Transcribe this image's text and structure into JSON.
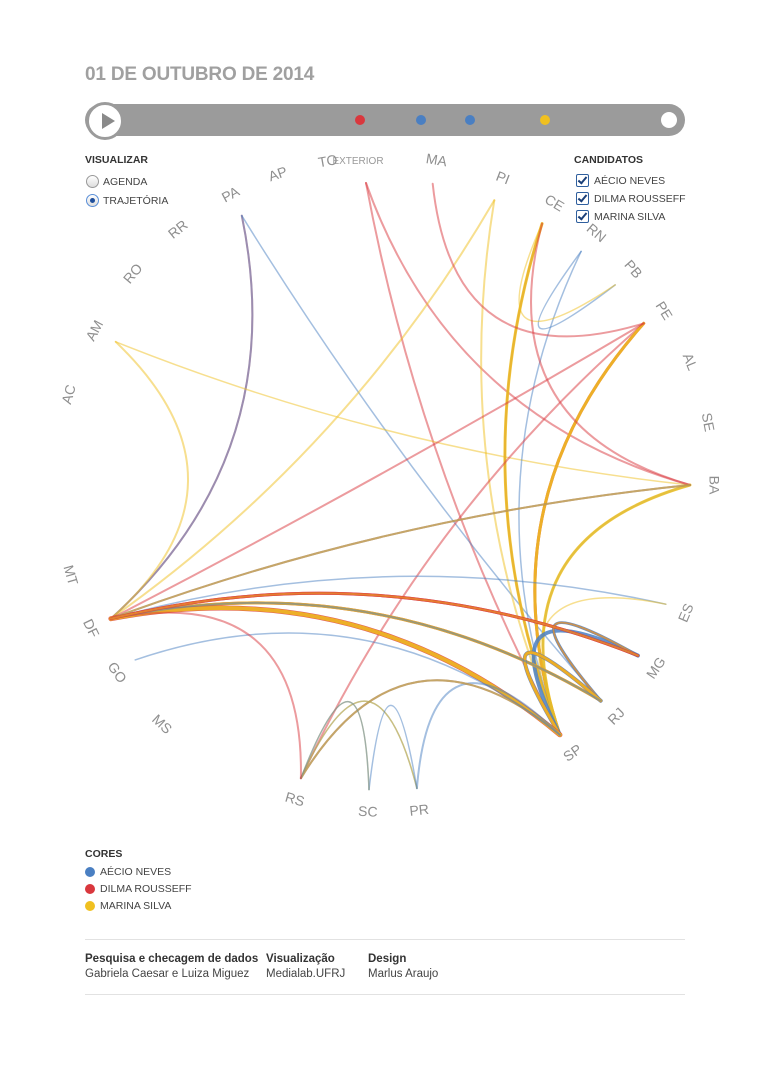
{
  "title": "01 DE OUTUBRO DE 2014",
  "timeline": {
    "dots": [
      {
        "color": "#d9373d"
      },
      {
        "color": "#4a7fc2"
      },
      {
        "color": "#4a7fc2"
      },
      {
        "color": "#f0c020"
      }
    ]
  },
  "visualize": {
    "heading": "VISUALIZAR",
    "options": [
      {
        "label": "AGENDA",
        "selected": false
      },
      {
        "label": "TRAJETÓRIA",
        "selected": true
      }
    ]
  },
  "candidates": {
    "heading": "CANDIDATOS",
    "items": [
      {
        "label": "AÉCIO NEVES",
        "checked": true
      },
      {
        "label": "DILMA ROUSSEFF",
        "checked": true
      },
      {
        "label": "MARINA SILVA",
        "checked": true
      }
    ]
  },
  "exterior_label": "EXTERIOR",
  "colors_legend": {
    "heading": "CORES",
    "items": [
      {
        "label": "AÉCIO NEVES",
        "color": "#4a7fc2"
      },
      {
        "label": "DILMA ROUSSEFF",
        "color": "#d9373d"
      },
      {
        "label": "MARINA SILVA",
        "color": "#f0c020"
      }
    ]
  },
  "states": [
    "MA",
    "PI",
    "CE",
    "RN",
    "PB",
    "PE",
    "AL",
    "SE",
    "BA",
    "ES",
    "MG",
    "RJ",
    "SP",
    "PR",
    "SC",
    "RS",
    "MS",
    "GO",
    "DF",
    "MT",
    "AC",
    "AM",
    "RO",
    "RR",
    "PA",
    "AP",
    "TO"
  ],
  "chord_colors": {
    "aecio": "#4a7fc2",
    "dilma": "#d9373d",
    "marina": "#f0c020"
  },
  "trajectories": [
    {
      "who": "dilma",
      "from": "EXTERIOR",
      "to": "SP",
      "weight": 2
    },
    {
      "who": "dilma",
      "from": "EXTERIOR",
      "to": "BA",
      "weight": 2
    },
    {
      "who": "dilma",
      "from": "PA",
      "to": "DF",
      "weight": 2
    },
    {
      "who": "aecio",
      "from": "PA",
      "to": "DF",
      "weight": 2
    },
    {
      "who": "aecio",
      "from": "PA",
      "to": "RJ",
      "weight": 1.5
    },
    {
      "who": "marina",
      "from": "AM",
      "to": "DF",
      "weight": 2
    },
    {
      "who": "marina",
      "from": "AM",
      "to": "BA",
      "weight": 1.5
    },
    {
      "who": "marina",
      "from": "PI",
      "to": "DF",
      "weight": 2
    },
    {
      "who": "marina",
      "from": "PI",
      "to": "SP",
      "weight": 2
    },
    {
      "who": "aecio",
      "from": "CE",
      "to": "SP",
      "weight": 2
    },
    {
      "who": "dilma",
      "from": "CE",
      "to": "SP",
      "weight": 2
    },
    {
      "who": "marina",
      "from": "CE",
      "to": "SP",
      "weight": 3
    },
    {
      "who": "aecio",
      "from": "RN",
      "to": "PB",
      "weight": 1.5
    },
    {
      "who": "aecio",
      "from": "RN",
      "to": "SP",
      "weight": 1.5
    },
    {
      "who": "marina",
      "from": "PB",
      "to": "CE",
      "weight": 1.5
    },
    {
      "who": "dilma",
      "from": "PE",
      "to": "RS",
      "weight": 2
    },
    {
      "who": "dilma",
      "from": "PE",
      "to": "SP",
      "weight": 3
    },
    {
      "who": "marina",
      "from": "PE",
      "to": "SP",
      "weight": 3
    },
    {
      "who": "dilma",
      "from": "PE",
      "to": "MA",
      "weight": 2
    },
    {
      "who": "aecio",
      "from": "BA",
      "to": "SP",
      "weight": 2
    },
    {
      "who": "marina",
      "from": "BA",
      "to": "SP",
      "weight": 3
    },
    {
      "who": "dilma",
      "from": "BA",
      "to": "DF",
      "weight": 2
    },
    {
      "who": "dilma",
      "from": "BA",
      "to": "CE",
      "weight": 2
    },
    {
      "who": "aecio",
      "from": "ES",
      "to": "DF",
      "weight": 1.5
    },
    {
      "who": "marina",
      "from": "ES",
      "to": "SP",
      "weight": 1.5
    },
    {
      "who": "dilma",
      "from": "MG",
      "to": "DF",
      "weight": 3
    },
    {
      "who": "aecio",
      "from": "MG",
      "to": "SP",
      "weight": 4
    },
    {
      "who": "aecio",
      "from": "MG",
      "to": "RJ",
      "weight": 3
    },
    {
      "who": "dilma",
      "from": "MG",
      "to": "RJ",
      "weight": 2
    },
    {
      "who": "marina",
      "from": "MG",
      "to": "RJ",
      "weight": 2
    },
    {
      "who": "dilma",
      "from": "RJ",
      "to": "DF",
      "weight": 3
    },
    {
      "who": "marina",
      "from": "RJ",
      "to": "DF",
      "weight": 3
    },
    {
      "who": "aecio",
      "from": "RJ",
      "to": "SP",
      "weight": 4
    },
    {
      "who": "dilma",
      "from": "RJ",
      "to": "SP",
      "weight": 3
    },
    {
      "who": "marina",
      "from": "RJ",
      "to": "SP",
      "weight": 3
    },
    {
      "who": "dilma",
      "from": "SP",
      "to": "DF",
      "weight": 5
    },
    {
      "who": "marina",
      "from": "SP",
      "to": "DF",
      "weight": 4
    },
    {
      "who": "aecio",
      "from": "SP",
      "to": "PR",
      "weight": 2
    },
    {
      "who": "dilma",
      "from": "SP",
      "to": "RS",
      "weight": 2
    },
    {
      "who": "aecio",
      "from": "SP",
      "to": "RS",
      "weight": 2
    },
    {
      "who": "marina",
      "from": "SP",
      "to": "RS",
      "weight": 2
    },
    {
      "who": "aecio",
      "from": "PR",
      "to": "RS",
      "weight": 1.5
    },
    {
      "who": "marina",
      "from": "PR",
      "to": "RS",
      "weight": 1.5
    },
    {
      "who": "aecio",
      "from": "SC",
      "to": "PR",
      "weight": 1.5
    },
    {
      "who": "marina",
      "from": "SC",
      "to": "RS",
      "weight": 1.5
    },
    {
      "who": "aecio",
      "from": "SC",
      "to": "RS",
      "weight": 1.5
    },
    {
      "who": "aecio",
      "from": "GO",
      "to": "SP",
      "weight": 1.5
    },
    {
      "who": "dilma",
      "from": "DF",
      "to": "RS",
      "weight": 2
    },
    {
      "who": "dilma",
      "from": "DF",
      "to": "PE",
      "weight": 2
    },
    {
      "who": "aecio",
      "from": "DF",
      "to": "BA",
      "weight": 2
    },
    {
      "who": "aecio",
      "from": "DF",
      "to": "RJ",
      "weight": 2
    },
    {
      "who": "marina",
      "from": "DF",
      "to": "BA",
      "weight": 2
    },
    {
      "who": "dilma",
      "from": "DF",
      "to": "MG",
      "weight": 3
    },
    {
      "who": "marina",
      "from": "DF",
      "to": "MG",
      "weight": 2
    }
  ],
  "credits": [
    {
      "heading": "Pesquisa e checagem de dados",
      "value": "Gabriela Caesar e Luiza Miguez"
    },
    {
      "heading": "Visualização",
      "value": "Medialab.UFRJ"
    },
    {
      "heading": "Design",
      "value": "Marlus Araujo"
    }
  ]
}
